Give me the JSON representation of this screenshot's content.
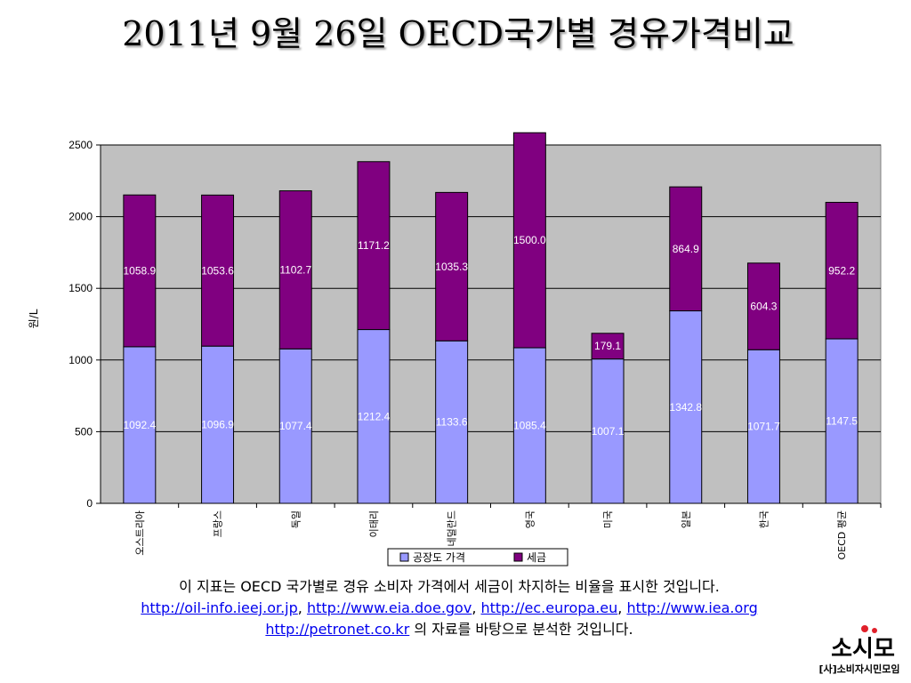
{
  "slide": {
    "title": "2011년 9월 26일 OECD국가별 경유가격비교",
    "description_line1": "이 지표는 OECD 국가별로 경유 소비자 가격에서 세금이 차지하는 비율을 표시한 것입니다.",
    "links": [
      "http://oil-info.ieej.or.jp",
      "http://www.eia.doe.gov",
      "http://ec.europa.eu",
      "http://www.iea.org",
      "http://petronet.co.kr"
    ],
    "link_separator": ", ",
    "description_line3_suffix": " 의 자료를 바탕으로 분석한 것입니다.",
    "logo": {
      "name": "소시모",
      "caption": "[사]소비자시민모임"
    }
  },
  "chart_data": {
    "type": "bar",
    "stacked": true,
    "title": "",
    "xlabel": "",
    "ylabel": "원/L",
    "ylim": [
      0,
      2500
    ],
    "yticks": [
      0,
      500,
      1000,
      1500,
      2000,
      2500
    ],
    "grid": true,
    "legend_position": "bottom",
    "categories": [
      "오스트리아",
      "프랑스",
      "독일",
      "이태리",
      "네덜란드",
      "영국",
      "미국",
      "일본",
      "한국",
      "OECD 평균"
    ],
    "series": [
      {
        "name": "공장도 가격",
        "color": "#9999ff",
        "values": [
          1092.4,
          1096.9,
          1077.4,
          1212.4,
          1133.6,
          1085.4,
          1007.1,
          1342.8,
          1071.7,
          1147.5
        ]
      },
      {
        "name": "세금",
        "color": "#800080",
        "values": [
          1058.9,
          1053.6,
          1102.7,
          1171.2,
          1035.3,
          1500.0,
          179.1,
          864.9,
          604.3,
          952.2
        ]
      }
    ],
    "data_labels": [
      [
        "1092.4",
        "1096.9",
        "1077.4",
        "1212.4",
        "1133.6",
        "1085.4",
        "1007.1",
        "1342.8",
        "1071.7",
        "1147.5"
      ],
      [
        "1058.9",
        "1053.6",
        "1102.7",
        "1171.2",
        "1035.3",
        "1500.0",
        "179.1",
        "864.9",
        "604.3",
        "952.2"
      ]
    ],
    "plot_background": "#c0c0c0"
  }
}
